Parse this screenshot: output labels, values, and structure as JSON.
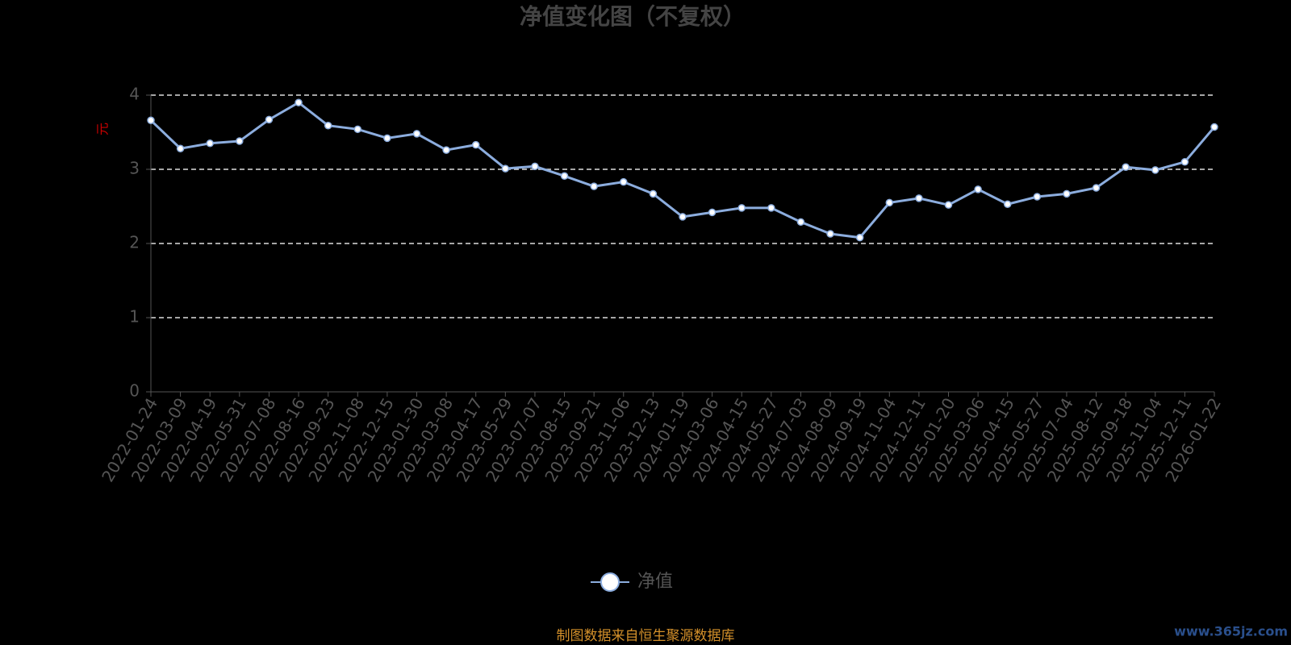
{
  "chart_data": {
    "type": "line",
    "title": "净值变化图（不复权）",
    "y_label": "元",
    "categories": [
      "2022-01-24",
      "2022-03-09",
      "2022-04-19",
      "2022-05-31",
      "2022-07-08",
      "2022-08-16",
      "2022-09-23",
      "2022-11-08",
      "2022-12-15",
      "2023-01-30",
      "2023-03-08",
      "2023-04-17",
      "2023-05-29",
      "2023-07-07",
      "2023-08-15",
      "2023-09-21",
      "2023-11-06",
      "2023-12-13",
      "2024-01-19",
      "2024-03-06",
      "2024-04-15",
      "2024-05-27",
      "2024-07-03",
      "2024-08-09",
      "2024-09-19",
      "2024-11-04",
      "2024-12-11",
      "2025-01-20",
      "2025-03-06",
      "2025-04-15",
      "2025-05-27",
      "2025-07-04",
      "2025-08-12",
      "2025-09-18",
      "2025-11-04",
      "2025-12-11",
      "2026-01-22"
    ],
    "series": [
      {
        "name": "净值",
        "color": "#8cadde",
        "values": [
          3.66,
          3.28,
          3.35,
          3.38,
          3.67,
          3.9,
          3.59,
          3.54,
          3.42,
          3.48,
          3.26,
          3.33,
          3.01,
          3.04,
          2.91,
          2.77,
          2.83,
          2.67,
          2.36,
          2.42,
          2.48,
          2.48,
          2.29,
          2.13,
          2.08,
          2.55,
          2.61,
          2.52,
          2.73,
          2.53,
          2.63,
          2.67,
          2.75,
          3.03,
          2.99,
          3.1,
          3.57
        ]
      }
    ],
    "ylim": [
      0,
      4
    ],
    "yticks": [
      0,
      1,
      2,
      3,
      4
    ],
    "grid": true,
    "source": "制图数据来自恒生聚源数据库",
    "watermark": "www.365jz.com"
  }
}
